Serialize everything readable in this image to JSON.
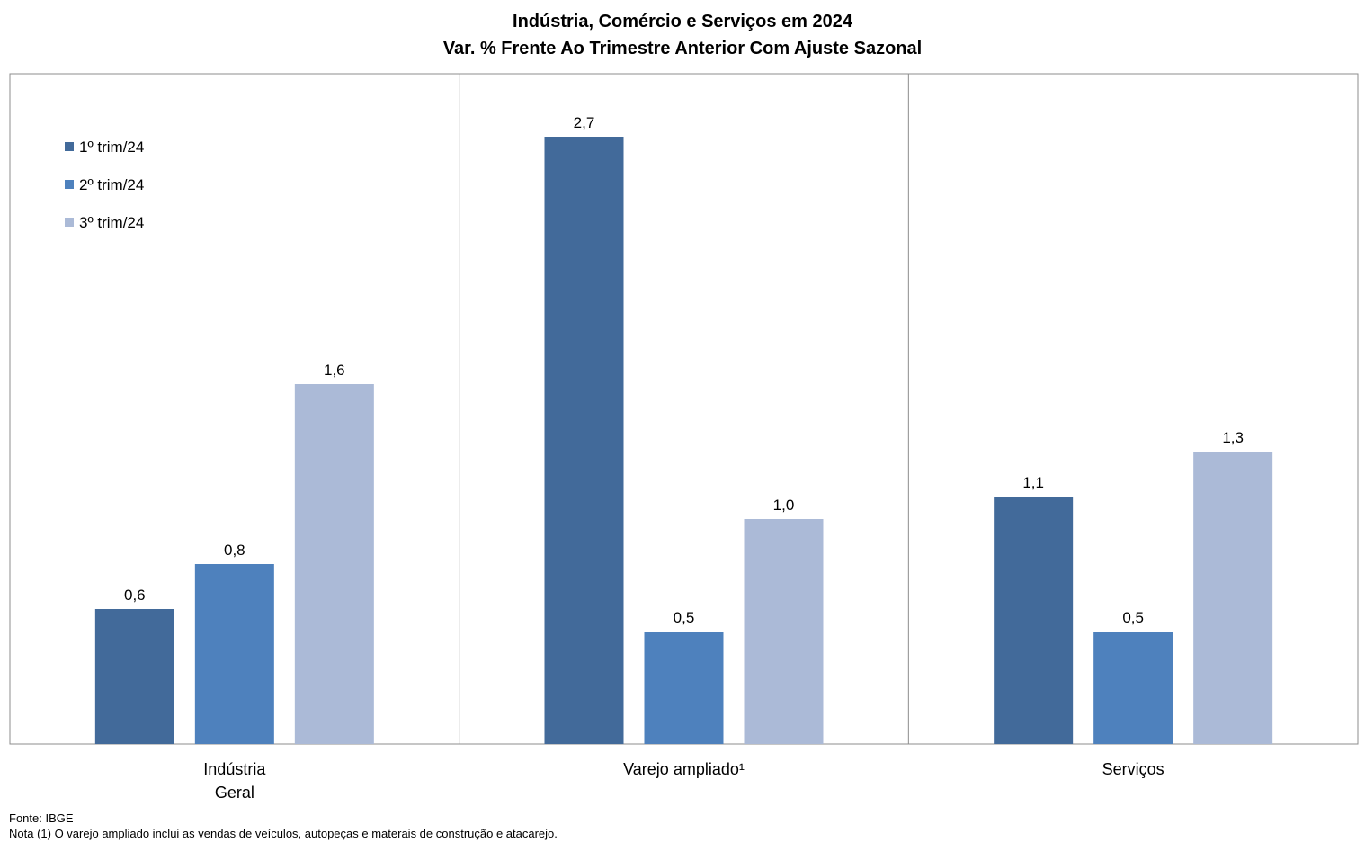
{
  "title": "Indústria, Comércio e Serviços em 2024",
  "subtitle": "Var. % Frente Ao Trimestre Anterior Com Ajuste Sazonal",
  "chart_data": {
    "type": "bar",
    "categories": [
      "Indústria Geral",
      "Varejo ampliado¹",
      "Serviços"
    ],
    "category_label_lines": [
      [
        "Indústria",
        "Geral"
      ],
      [
        "Varejo ampliado¹"
      ],
      [
        "Serviços"
      ]
    ],
    "series": [
      {
        "name": "1º trim/24",
        "values": [
          0.6,
          2.7,
          1.1
        ],
        "labels": [
          "0,6",
          "2,7",
          "1,1"
        ],
        "color": "#426A9A"
      },
      {
        "name": "2º trim/24",
        "values": [
          0.8,
          0.5,
          0.5
        ],
        "labels": [
          "0,8",
          "0,5",
          "0,5"
        ],
        "color": "#4E81BD"
      },
      {
        "name": "3º trim/24",
        "values": [
          1.6,
          1.0,
          1.3
        ],
        "labels": [
          "1,6",
          "1,0",
          "1,3"
        ],
        "color": "#ABBAD7"
      }
    ],
    "ylim": [
      0,
      3.0
    ],
    "grid": false,
    "legend_position": "top-left"
  },
  "footer": {
    "source": "Fonte: IBGE",
    "note": "Nota (1) O varejo ampliado inclui as vendas de veículos, autopeças e materais de construção e atacarejo."
  }
}
